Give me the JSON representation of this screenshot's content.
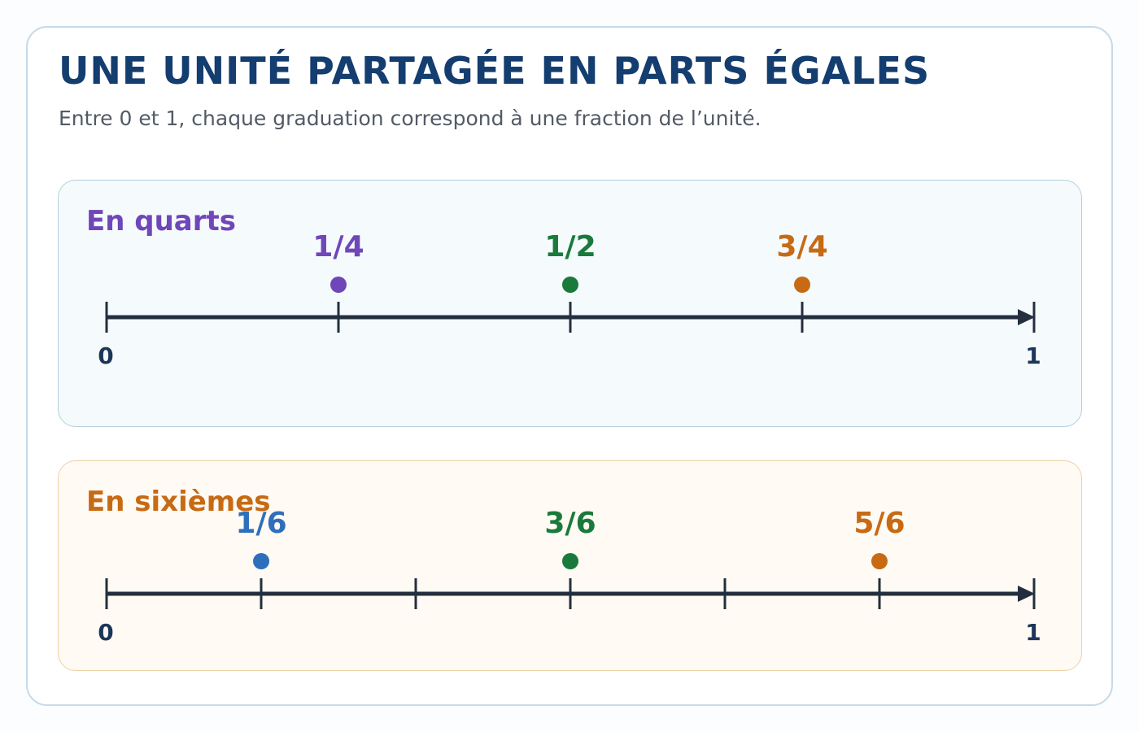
{
  "title": "UNE UNITÉ PARTAGÉE EN PARTS ÉGALES",
  "subtitle": "Entre 0 et 1, chaque graduation correspond à une fraction de l’unité.",
  "colors": {
    "title": "#143d70",
    "axis": "#232f3e",
    "purple": "#6f47b8",
    "green": "#1a7a3b",
    "orange": "#c76a14",
    "blue": "#2e6fbb"
  },
  "chart_data": [
    {
      "type": "number-line",
      "name": "En quarts",
      "name_color": "#6f47b8",
      "x_range": [
        0,
        1
      ],
      "divisions": 4,
      "end_labels": [
        "0",
        "1"
      ],
      "points": [
        {
          "label": "1/4",
          "value": 0.25,
          "color": "#6f47b8"
        },
        {
          "label": "1/2",
          "value": 0.5,
          "color": "#1a7a3b"
        },
        {
          "label": "3/4",
          "value": 0.75,
          "color": "#c76a14"
        }
      ]
    },
    {
      "type": "number-line",
      "name": "En sixièmes",
      "name_color": "#c76a14",
      "x_range": [
        0,
        1
      ],
      "divisions": 6,
      "end_labels": [
        "0",
        "1"
      ],
      "points": [
        {
          "label": "1/6",
          "value": 0.1667,
          "color": "#2e6fbb"
        },
        {
          "label": "3/6",
          "value": 0.5,
          "color": "#1a7a3b"
        },
        {
          "label": "5/6",
          "value": 0.8333,
          "color": "#c76a14"
        }
      ]
    }
  ]
}
